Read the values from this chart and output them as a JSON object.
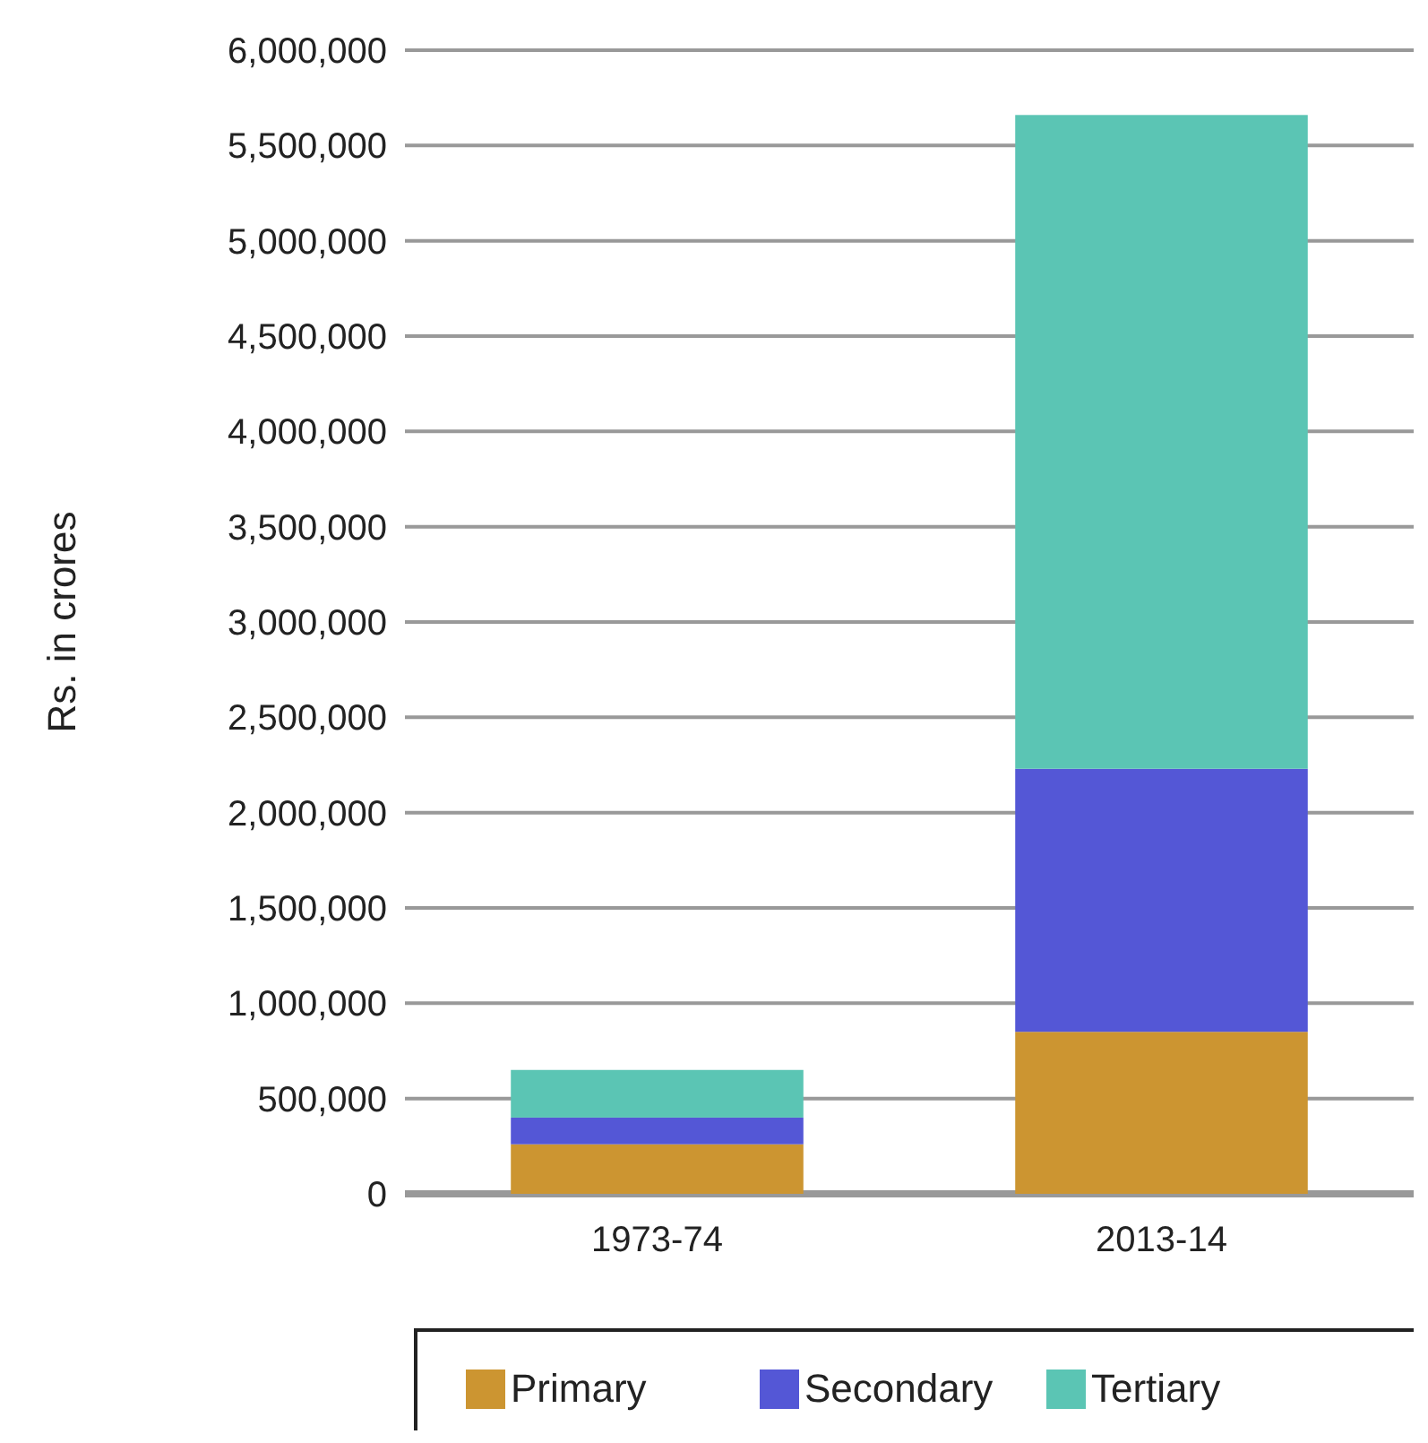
{
  "chart_data": {
    "type": "bar",
    "stacked": true,
    "ylabel": "Rs. in crores",
    "categories": [
      "1973-74",
      "2013-14"
    ],
    "series": [
      {
        "name": "Primary",
        "color": "#cc9531",
        "values": [
          260000,
          850000
        ]
      },
      {
        "name": "Secondary",
        "color": "#5457d6",
        "values": [
          140000,
          1380000
        ]
      },
      {
        "name": "Tertiary",
        "color": "#5bc5b4",
        "values": [
          250000,
          3430000
        ]
      }
    ],
    "ylim": [
      0,
      6000000
    ],
    "yticks": [
      {
        "value": 0,
        "label": "0"
      },
      {
        "value": 500000,
        "label": "500,000"
      },
      {
        "value": 1000000,
        "label": "1,000,000"
      },
      {
        "value": 1500000,
        "label": "1,500,000"
      },
      {
        "value": 2000000,
        "label": "2,000,000"
      },
      {
        "value": 2500000,
        "label": "2,500,000"
      },
      {
        "value": 3000000,
        "label": "3,000,000"
      },
      {
        "value": 3500000,
        "label": "3,500,000"
      },
      {
        "value": 4000000,
        "label": "4,000,000"
      },
      {
        "value": 4500000,
        "label": "4,500,000"
      },
      {
        "value": 5000000,
        "label": "5,000,000"
      },
      {
        "value": 5500000,
        "label": "5,500,000"
      },
      {
        "value": 6000000,
        "label": "6,000,000"
      }
    ],
    "grid": "y",
    "legend": "bottom"
  }
}
